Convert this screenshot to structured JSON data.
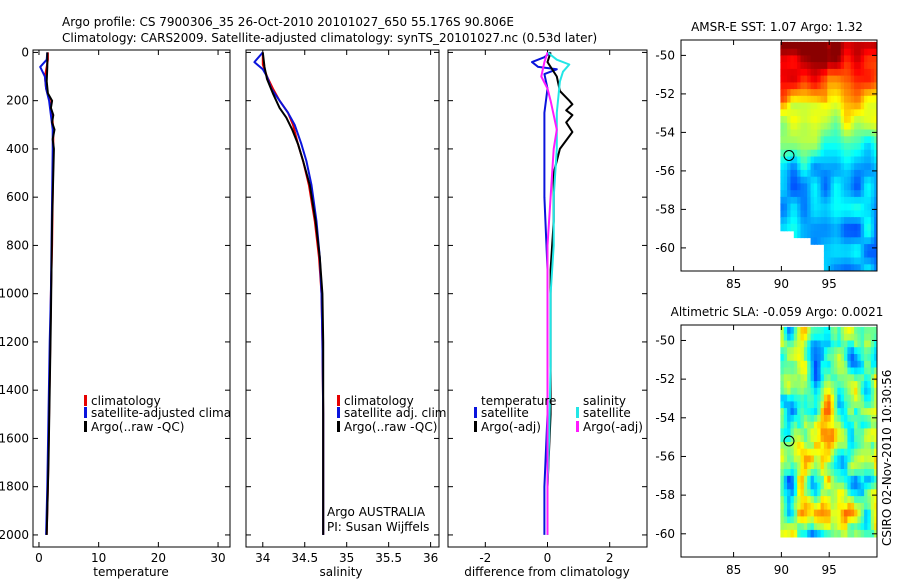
{
  "title_line1": "Argo profile: CS 7900306_35 26-Oct-2010 20101027_650 55.176S 90.806E",
  "title_line2": "Climatology: CARS2009. Satellite-adjusted climatology: synTS_20101027.nc (0.53d later)",
  "side_stamp": "CSIRO 02-Nov-2010 10:30:56",
  "colors": {
    "red": "#e60000",
    "blue": "#0a14dc",
    "black": "#000000",
    "cyan": "#22e6e6",
    "magenta": "#ff1aff"
  },
  "chart_data": [
    {
      "type": "line",
      "id": "temperature",
      "xlabel": "temperature",
      "ylabel": "",
      "xlim": [
        -1,
        32
      ],
      "ylim": [
        2050,
        -10
      ],
      "xticks": [
        0,
        10,
        20,
        30
      ],
      "yticks": [
        0,
        200,
        400,
        600,
        800,
        1000,
        1200,
        1400,
        1600,
        1800,
        2000
      ],
      "legend": [
        "climatology",
        "satellite-adjusted climatology",
        "Argo(..raw -QC)"
      ],
      "legend_position": "lower-middle",
      "series": [
        {
          "name": "climatology",
          "color": "red",
          "points": [
            [
              1.5,
              0
            ],
            [
              1.5,
              30
            ],
            [
              1.3,
              60
            ],
            [
              1.0,
              100
            ],
            [
              1.2,
              150
            ],
            [
              1.8,
              200
            ],
            [
              2.2,
              260
            ],
            [
              2.4,
              320
            ],
            [
              2.4,
              400
            ],
            [
              2.3,
              600
            ],
            [
              2.2,
              800
            ],
            [
              2.0,
              1000
            ],
            [
              1.9,
              1200
            ],
            [
              1.7,
              1500
            ],
            [
              1.5,
              1800
            ],
            [
              1.3,
              2000
            ]
          ]
        },
        {
          "name": "satellite-adjusted climatology",
          "color": "blue",
          "points": [
            [
              1.4,
              0
            ],
            [
              1.3,
              30
            ],
            [
              0.2,
              60
            ],
            [
              1.0,
              100
            ],
            [
              1.2,
              150
            ],
            [
              1.7,
              200
            ],
            [
              2.0,
              260
            ],
            [
              2.3,
              320
            ],
            [
              2.3,
              400
            ],
            [
              2.2,
              600
            ],
            [
              2.1,
              800
            ],
            [
              2.0,
              1000
            ],
            [
              1.8,
              1200
            ],
            [
              1.6,
              1500
            ],
            [
              1.4,
              1800
            ],
            [
              1.2,
              2000
            ]
          ]
        },
        {
          "name": "Argo(..raw -QC)",
          "color": "black",
          "points": [
            [
              1.4,
              0
            ],
            [
              1.4,
              60
            ],
            [
              1.3,
              120
            ],
            [
              1.5,
              170
            ],
            [
              2.2,
              200
            ],
            [
              2.0,
              230
            ],
            [
              2.4,
              260
            ],
            [
              2.2,
              290
            ],
            [
              2.6,
              320
            ],
            [
              2.3,
              360
            ],
            [
              2.5,
              400
            ],
            [
              2.4,
              500
            ],
            [
              2.2,
              700
            ],
            [
              2.1,
              900
            ],
            [
              2.0,
              1100
            ],
            [
              1.8,
              1400
            ],
            [
              1.6,
              1700
            ],
            [
              1.3,
              2000
            ]
          ]
        }
      ]
    },
    {
      "type": "line",
      "id": "salinity",
      "xlabel": "salinity",
      "ylabel": "",
      "xlim": [
        33.8,
        36.1
      ],
      "ylim": [
        2050,
        -10
      ],
      "xticks": [
        34,
        34.5,
        35,
        35.5,
        36
      ],
      "yticks": [],
      "legend": [
        "climatology",
        "satellite adj. clim.",
        "Argo(..raw -QC)"
      ],
      "legend_position": "lower-middle",
      "annotation": [
        "Argo AUSTRALIA",
        "PI: Susan Wijffels"
      ],
      "series": [
        {
          "name": "climatology",
          "color": "red",
          "points": [
            [
              34.0,
              0
            ],
            [
              34.0,
              50
            ],
            [
              34.05,
              100
            ],
            [
              34.12,
              150
            ],
            [
              34.2,
              200
            ],
            [
              34.3,
              250
            ],
            [
              34.36,
              300
            ],
            [
              34.42,
              380
            ],
            [
              34.48,
              450
            ],
            [
              34.55,
              550
            ],
            [
              34.62,
              700
            ],
            [
              34.67,
              850
            ],
            [
              34.7,
              1000
            ],
            [
              34.71,
              1200
            ],
            [
              34.72,
              1500
            ],
            [
              34.72,
              1800
            ],
            [
              34.72,
              2000
            ]
          ]
        },
        {
          "name": "satellite adj. clim.",
          "color": "blue",
          "points": [
            [
              34.0,
              0
            ],
            [
              33.9,
              40
            ],
            [
              34.0,
              70
            ],
            [
              34.05,
              100
            ],
            [
              34.1,
              150
            ],
            [
              34.2,
              200
            ],
            [
              34.3,
              250
            ],
            [
              34.38,
              300
            ],
            [
              34.46,
              380
            ],
            [
              34.52,
              450
            ],
            [
              34.58,
              550
            ],
            [
              34.64,
              700
            ],
            [
              34.68,
              850
            ],
            [
              34.7,
              1000
            ],
            [
              34.71,
              1200
            ],
            [
              34.72,
              1500
            ],
            [
              34.72,
              1800
            ],
            [
              34.72,
              2000
            ]
          ]
        },
        {
          "name": "Argo(..raw -QC)",
          "color": "black",
          "points": [
            [
              34.0,
              0
            ],
            [
              34.02,
              60
            ],
            [
              34.05,
              110
            ],
            [
              34.12,
              170
            ],
            [
              34.2,
              230
            ],
            [
              34.28,
              270
            ],
            [
              34.35,
              320
            ],
            [
              34.42,
              380
            ],
            [
              34.48,
              450
            ],
            [
              34.56,
              550
            ],
            [
              34.63,
              700
            ],
            [
              34.68,
              850
            ],
            [
              34.71,
              1000
            ],
            [
              34.72,
              1200
            ],
            [
              34.72,
              1500
            ],
            [
              34.72,
              1800
            ],
            [
              34.72,
              2000
            ]
          ]
        }
      ]
    },
    {
      "type": "line",
      "id": "difference",
      "xlabel": "difference from climatology",
      "ylabel": "",
      "xlim": [
        -3.2,
        3.2
      ],
      "ylim": [
        2050,
        -10
      ],
      "xticks": [
        -2,
        0,
        2
      ],
      "yticks": [],
      "legend_groups": [
        {
          "title": "temperature",
          "items": [
            "satellite",
            "Argo(-adj)"
          ]
        },
        {
          "title": "salinity",
          "items": [
            "satellite",
            "Argo(-adj)"
          ]
        }
      ],
      "legend_position": "lower-middle",
      "series": [
        {
          "name": "temperature satellite",
          "color": "blue",
          "points": [
            [
              0.1,
              0
            ],
            [
              -0.1,
              20
            ],
            [
              -0.5,
              40
            ],
            [
              -0.3,
              60
            ],
            [
              0.3,
              70
            ],
            [
              -0.1,
              90
            ],
            [
              0.0,
              150
            ],
            [
              -0.1,
              250
            ],
            [
              -0.1,
              400
            ],
            [
              -0.1,
              600
            ],
            [
              0.0,
              900
            ],
            [
              0.0,
              1200
            ],
            [
              0.0,
              1500
            ],
            [
              -0.1,
              1800
            ],
            [
              -0.1,
              2000
            ]
          ]
        },
        {
          "name": "temperature Argo(-adj)",
          "color": "black",
          "points": [
            [
              0.1,
              0
            ],
            [
              0.0,
              40
            ],
            [
              0.3,
              100
            ],
            [
              0.4,
              160
            ],
            [
              0.7,
              200
            ],
            [
              0.8,
              215
            ],
            [
              0.6,
              240
            ],
            [
              0.8,
              260
            ],
            [
              0.6,
              290
            ],
            [
              0.8,
              330
            ],
            [
              0.4,
              400
            ],
            [
              0.2,
              500
            ],
            [
              0.2,
              700
            ],
            [
              0.1,
              900
            ],
            [
              0.1,
              1200
            ],
            [
              0.1,
              1500
            ],
            [
              0.0,
              1800
            ],
            [
              0.0,
              2000
            ]
          ]
        },
        {
          "name": "salinity satellite",
          "color": "cyan",
          "points": [
            [
              0.0,
              0
            ],
            [
              0.3,
              30
            ],
            [
              0.7,
              50
            ],
            [
              0.5,
              80
            ],
            [
              0.4,
              120
            ],
            [
              0.3,
              250
            ],
            [
              0.3,
              400
            ],
            [
              0.2,
              600
            ],
            [
              0.2,
              800
            ],
            [
              0.1,
              1000
            ],
            [
              0.1,
              1300
            ],
            [
              0.05,
              1600
            ],
            [
              0.0,
              1800
            ],
            [
              0.0,
              2000
            ]
          ]
        },
        {
          "name": "salinity Argo(-adj)",
          "color": "magenta",
          "points": [
            [
              0.0,
              0
            ],
            [
              -0.1,
              40
            ],
            [
              -0.2,
              100
            ],
            [
              0.0,
              150
            ],
            [
              0.1,
              200
            ],
            [
              0.2,
              260
            ],
            [
              0.3,
              320
            ],
            [
              0.2,
              400
            ],
            [
              0.1,
              600
            ],
            [
              0.0,
              800
            ],
            [
              0.0,
              1000
            ],
            [
              0.0,
              1300
            ],
            [
              0.0,
              1600
            ],
            [
              0.0,
              1800
            ],
            [
              0.0,
              2000
            ]
          ]
        }
      ]
    },
    {
      "type": "heatmap",
      "id": "sst-map",
      "title": "AMSR-E SST: 1.07 Argo: 1.32",
      "xlim": [
        79.5,
        100
      ],
      "ylim": [
        -61.2,
        -49.2
      ],
      "xticks": [
        85,
        90,
        95
      ],
      "yticks": [
        -50,
        -52,
        -54,
        -56,
        -58,
        -60
      ],
      "float_lon": 90.8,
      "float_lat": -55.2
    },
    {
      "type": "heatmap",
      "id": "sla-map",
      "title": "Altimetric SLA: -0.059  Argo: 0.0021",
      "xlim": [
        79.5,
        100
      ],
      "ylim": [
        -61.2,
        -49.2
      ],
      "xticks": [
        85,
        90,
        95
      ],
      "yticks": [
        -50,
        -52,
        -54,
        -56,
        -58,
        -60
      ],
      "float_lon": 90.8,
      "float_lat": -55.2
    }
  ]
}
